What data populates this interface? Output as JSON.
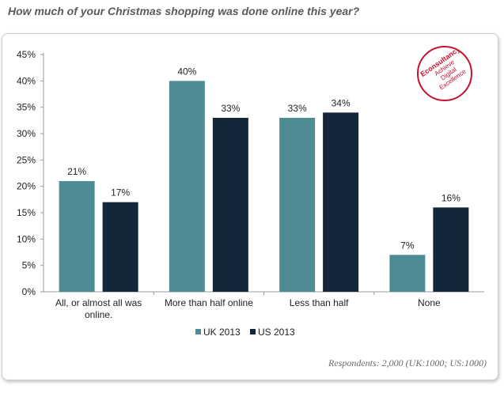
{
  "title": "How much of your Christmas shopping was done online this year?",
  "footnote": "Respondents: 2,000 (UK:1000; US:1000)",
  "logo": {
    "brand": "Econsultancy",
    "tagline": [
      "Achieve",
      "Digital",
      "Excellence"
    ]
  },
  "colors": {
    "uk": "#4e8c95",
    "us": "#14263a",
    "logo": "#c8102e"
  },
  "chart_data": {
    "type": "bar",
    "title": "How much of your Christmas shopping was done online this year?",
    "xlabel": "",
    "ylabel": "",
    "categories": [
      [
        "All, or almost all was",
        "online."
      ],
      [
        "More than half online"
      ],
      [
        "Less than half"
      ],
      [
        "None"
      ]
    ],
    "series": [
      {
        "name": "UK 2013",
        "values": [
          21,
          40,
          33,
          7
        ],
        "labels": [
          "21%",
          "40%",
          "33%",
          "7%"
        ]
      },
      {
        "name": "US 2013",
        "values": [
          17,
          33,
          34,
          16
        ],
        "labels": [
          "17%",
          "33%",
          "34%",
          "16%"
        ]
      }
    ],
    "ylim": [
      0,
      45
    ],
    "yticks": [
      "0%",
      "5%",
      "10%",
      "15%",
      "20%",
      "25%",
      "30%",
      "35%",
      "40%",
      "45%"
    ],
    "grid": false,
    "legend": "bottom-center"
  }
}
